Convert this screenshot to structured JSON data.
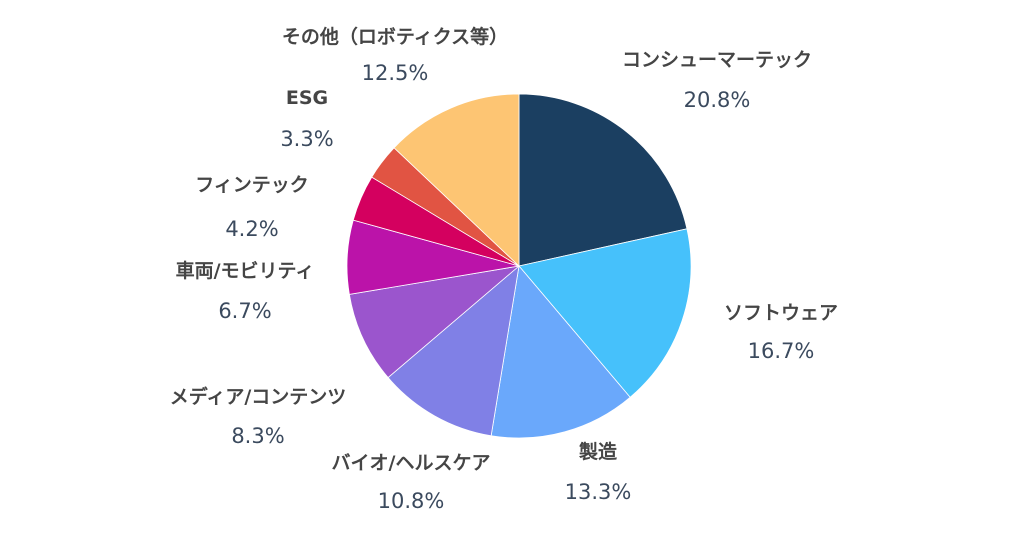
{
  "chart_data": {
    "type": "pie",
    "title": "",
    "start": "12 o'clock",
    "direction": "clockwise",
    "legend": "none",
    "slices": [
      {
        "label": "コンシューマーテック",
        "value": 20.8,
        "display": "20.8%",
        "color": "#1b3f61"
      },
      {
        "label": "ソフトウェア",
        "value": 16.7,
        "display": "16.7%",
        "color": "#46c1fb"
      },
      {
        "label": "製造",
        "value": 13.3,
        "display": "13.3%",
        "color": "#6aa8fb"
      },
      {
        "label": "バイオ/ヘルスケア",
        "value": 10.8,
        "display": "10.8%",
        "color": "#8080e6"
      },
      {
        "label": "メディア/コンテンツ",
        "value": 8.3,
        "display": "8.3%",
        "color": "#9b55cd"
      },
      {
        "label": "車両/モビリティ",
        "value": 6.7,
        "display": "6.7%",
        "color": "#bb13a9"
      },
      {
        "label": "フィンテック",
        "value": 4.2,
        "display": "4.2%",
        "color": "#d4005f"
      },
      {
        "label": "ESG",
        "value": 3.3,
        "display": "3.3%",
        "color": "#e15443"
      },
      {
        "label": "その他（ロボティクス等）",
        "value": 12.5,
        "display": "12.5%",
        "color": "#fdc573"
      }
    ]
  }
}
